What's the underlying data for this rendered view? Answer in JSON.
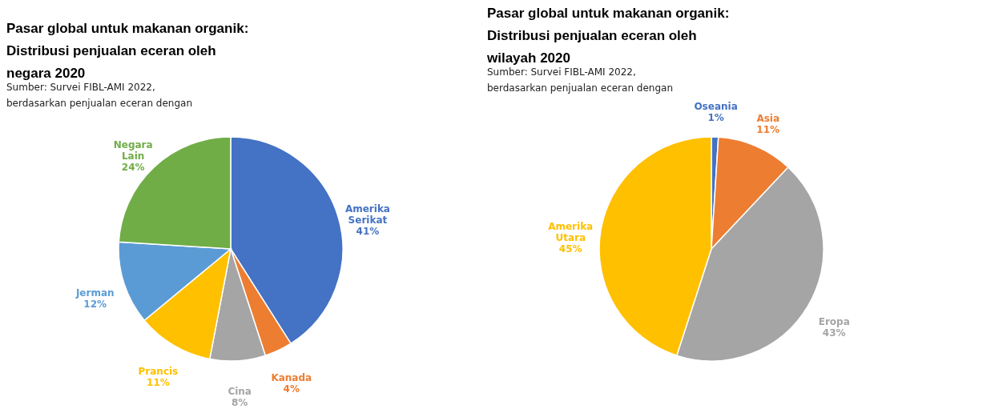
{
  "chart_data": [
    {
      "type": "pie",
      "title": "Pasar global untuk makanan organik: Distribusi penjualan eceran oleh negara 2020",
      "subtitle": "Sumber: Survei FIBL-AMI 2022, berdasarkan penjualan eceran dengan",
      "categories": [
        "Amerika Serikat",
        "Kanada",
        "Cina",
        "Prancis",
        "Jerman",
        "Negara Lain"
      ],
      "values": [
        41,
        4,
        8,
        11,
        12,
        24
      ],
      "colors": [
        "#4472c4",
        "#ed7d31",
        "#a5a5a5",
        "#ffc000",
        "#5b9bd5",
        "#70ad47"
      ],
      "value_labels": [
        "41%",
        "4%",
        "8%",
        "11%",
        "12%",
        "24%"
      ]
    },
    {
      "type": "pie",
      "title": "Pasar global untuk makanan organik: Distribusi penjualan eceran oleh wilayah 2020",
      "subtitle": "Sumber: Survei FIBL-AMI 2022, berdasarkan penjualan eceran dengan",
      "categories": [
        "Oseania",
        "Asia",
        "Eropa",
        "Amerika Utara"
      ],
      "values": [
        1,
        11,
        43,
        45
      ],
      "colors": [
        "#4472c4",
        "#ed7d31",
        "#a5a5a5",
        "#ffc000"
      ],
      "value_labels": [
        "1%",
        "11%",
        "43%",
        "45%"
      ]
    }
  ]
}
